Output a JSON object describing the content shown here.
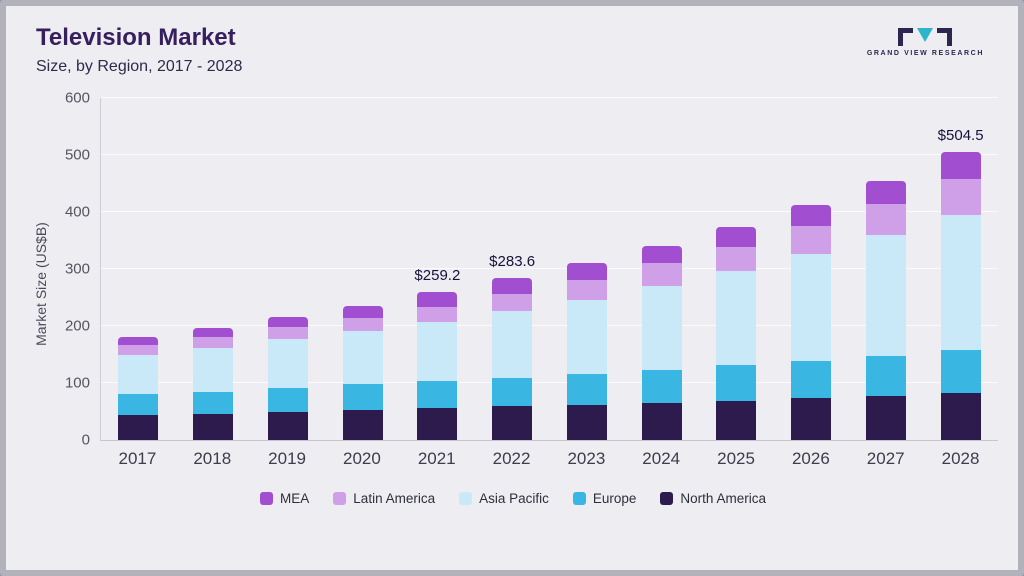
{
  "header": {
    "title": "Television Market",
    "subtitle": "Size, by Region, 2017 - 2028",
    "logo_text": "GRAND VIEW RESEARCH"
  },
  "chart_data": {
    "type": "bar",
    "stacked": true,
    "title": "Television Market Size, by Region, 2017 - 2028",
    "ylabel": "Market Size (US$B)",
    "xlabel": "",
    "ylim": [
      0,
      600
    ],
    "yticks": [
      0,
      100,
      200,
      300,
      400,
      500,
      600
    ],
    "grid": "horizontal",
    "legend_position": "bottom",
    "categories": [
      "2017",
      "2018",
      "2019",
      "2020",
      "2021",
      "2022",
      "2023",
      "2024",
      "2025",
      "2026",
      "2027",
      "2028"
    ],
    "series": [
      {
        "name": "North America",
        "color": "#2d1b4e",
        "values": [
          44,
          46,
          50,
          53,
          56,
          60,
          62,
          65,
          68,
          74,
          77,
          82
        ]
      },
      {
        "name": "Europe",
        "color": "#3ab6e3",
        "values": [
          36,
          39,
          42,
          45,
          48,
          49,
          53,
          58,
          63,
          65,
          70,
          76
        ]
      },
      {
        "name": "Asia Pacific",
        "color": "#c9e9f8",
        "values": [
          70,
          77,
          85,
          93,
          103,
          117,
          130,
          147,
          165,
          188,
          212,
          237
        ]
      },
      {
        "name": "Latin America",
        "color": "#cf9fe8",
        "values": [
          17,
          19,
          21,
          23,
          27,
          31,
          36,
          40,
          43,
          48,
          55,
          63
        ]
      },
      {
        "name": "MEA",
        "color": "#a14fd0",
        "values": [
          14,
          16,
          17,
          21,
          25.2,
          26.6,
          29,
          30,
          34,
          37,
          41,
          46.5
        ]
      }
    ],
    "totals": [
      181,
      197,
      215,
      235,
      259.2,
      283.6,
      310,
      340,
      373,
      412,
      455,
      504.5
    ],
    "annotations": [
      {
        "category": "2021",
        "label": "$259.2"
      },
      {
        "category": "2022",
        "label": "$283.6"
      },
      {
        "category": "2028",
        "label": "$504.5"
      }
    ],
    "legend": [
      "MEA",
      "Latin America",
      "Asia Pacific",
      "Europe",
      "North America"
    ]
  }
}
